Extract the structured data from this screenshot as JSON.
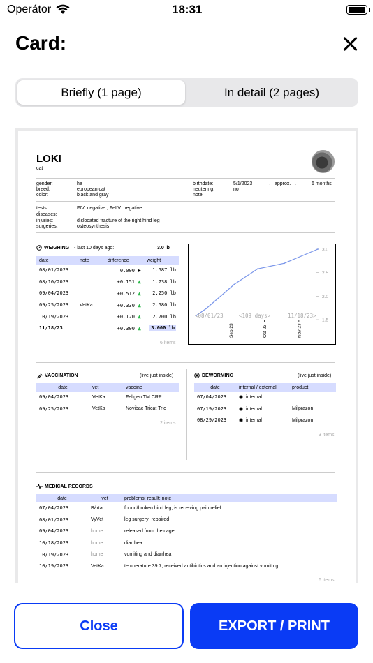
{
  "status": {
    "carrier": "Operátor",
    "time": "18:31"
  },
  "header": {
    "title": "Card:"
  },
  "tabs": [
    "Briefly (1 page)",
    "In detail (2 pages)"
  ],
  "pet": {
    "name": "LOKI",
    "species": "cat",
    "labels": {
      "gender": "gender:",
      "breed": "breed:",
      "color": "color:",
      "birthdate": "birthdate:",
      "neutering": "neutering:",
      "note": "note:",
      "tests": "tests:",
      "diseases": "diseases:",
      "injuries": "injuries:",
      "surgeries": "surgeries:"
    },
    "gender": "he",
    "breed": "european cat",
    "color": "black and gray",
    "birthdate": "5/1/2023",
    "approx": "← approx. →",
    "age": "6 months",
    "neutering": "no",
    "tests": "FIV: negative  ;  FeLV: negative",
    "injuries": "dislocated fracture of the right hind leg",
    "surgeries": "osteosynthesis"
  },
  "weighing": {
    "title": "WEIGHING",
    "sub": "-  last 10 days ago:",
    "last": "3.0 lb",
    "headers": [
      "date",
      "note",
      "difference",
      "weight"
    ],
    "rows": [
      {
        "date": "08/01/2023",
        "note": "",
        "diff": "0.000",
        "mark": "▶",
        "weight": "1.587 lb"
      },
      {
        "date": "08/10/2023",
        "note": "",
        "diff": "+0.151",
        "mark": "▲",
        "weight": "1.738 lb"
      },
      {
        "date": "09/04/2023",
        "note": "",
        "diff": "+0.512",
        "mark": "▲",
        "weight": "2.250 lb"
      },
      {
        "date": "09/25/2023",
        "note": "VetKa",
        "diff": "+0.330",
        "mark": "▲",
        "weight": "2.580 lb"
      },
      {
        "date": "10/19/2023",
        "note": "",
        "diff": "+0.120",
        "mark": "▲",
        "weight": "2.700 lb"
      },
      {
        "date": "11/18/23",
        "note": "",
        "diff": "+0.300",
        "mark": "▲",
        "weight": "3.000 lb"
      }
    ],
    "count": "6 items"
  },
  "chart_data": {
    "type": "line",
    "x": [
      "08/01/2023",
      "08/10/2023",
      "09/04/2023",
      "09/25/2023",
      "10/19/2023",
      "11/18/2023"
    ],
    "values": [
      1.587,
      1.738,
      2.25,
      2.58,
      2.7,
      3.0
    ],
    "ylim": [
      1.5,
      3.0
    ],
    "yticks": [
      "3.0",
      "2.5",
      "2.0",
      "1.5"
    ],
    "xticks": [
      "Sep 23",
      "Oct 23",
      "Nov 23"
    ],
    "range_start": "<08/01/23",
    "range_mid": "<109 days>",
    "range_end": "11/18/23>",
    "line_color": "#7a96ea",
    "grid": false
  },
  "vaccination": {
    "title": "VACCINATION",
    "note": "(live just inside)",
    "headers": [
      "date",
      "vet",
      "vaccine"
    ],
    "rows": [
      {
        "date": "09/04/2023",
        "vet": "VetKa",
        "vaccine": "Feligen TM CRP"
      },
      {
        "date": "09/25/2023",
        "vet": "VetKa",
        "vaccine": "Novibac Tricat Trio"
      }
    ],
    "count": "2 items"
  },
  "deworming": {
    "title": "DEWORMING",
    "note": "(live just inside)",
    "headers": [
      "date",
      "internal / external",
      "product"
    ],
    "rows": [
      {
        "date": "07/04/2023",
        "type": "internal",
        "product": ""
      },
      {
        "date": "07/19/2023",
        "type": "internal",
        "product": "Milprazon"
      },
      {
        "date": "08/29/2023",
        "type": "internal",
        "product": "Milprazon"
      }
    ],
    "count": "3 items"
  },
  "medical": {
    "title": "MEDICAL RECORDS",
    "headers": [
      "date",
      "vet",
      "problems; result; note"
    ],
    "rows": [
      {
        "date": "07/04/2023",
        "vet": "Bárta",
        "note": "found/broken hind leg; is receiving pain relief"
      },
      {
        "date": "08/01/2023",
        "vet": "VyVet",
        "note": "leg surgery; repaired"
      },
      {
        "date": "09/04/2023",
        "vet": "home",
        "note": "released from the cage"
      },
      {
        "date": "10/18/2023",
        "vet": "home",
        "note": "diarrhea"
      },
      {
        "date": "10/19/2023",
        "vet": "home",
        "note": "vomiting and diarrhea"
      },
      {
        "date": "10/19/2023",
        "vet": "VetKa",
        "note": "temperature 39.7, received antibiotics and an injection against vomiting"
      }
    ],
    "count": "6 items"
  },
  "buttons": {
    "close": "Close",
    "export": "EXPORT / PRINT"
  },
  "colors": {
    "accent": "#0a3bf5",
    "table_header": "#d6dcff",
    "up_arrow": "#2cb84a"
  }
}
